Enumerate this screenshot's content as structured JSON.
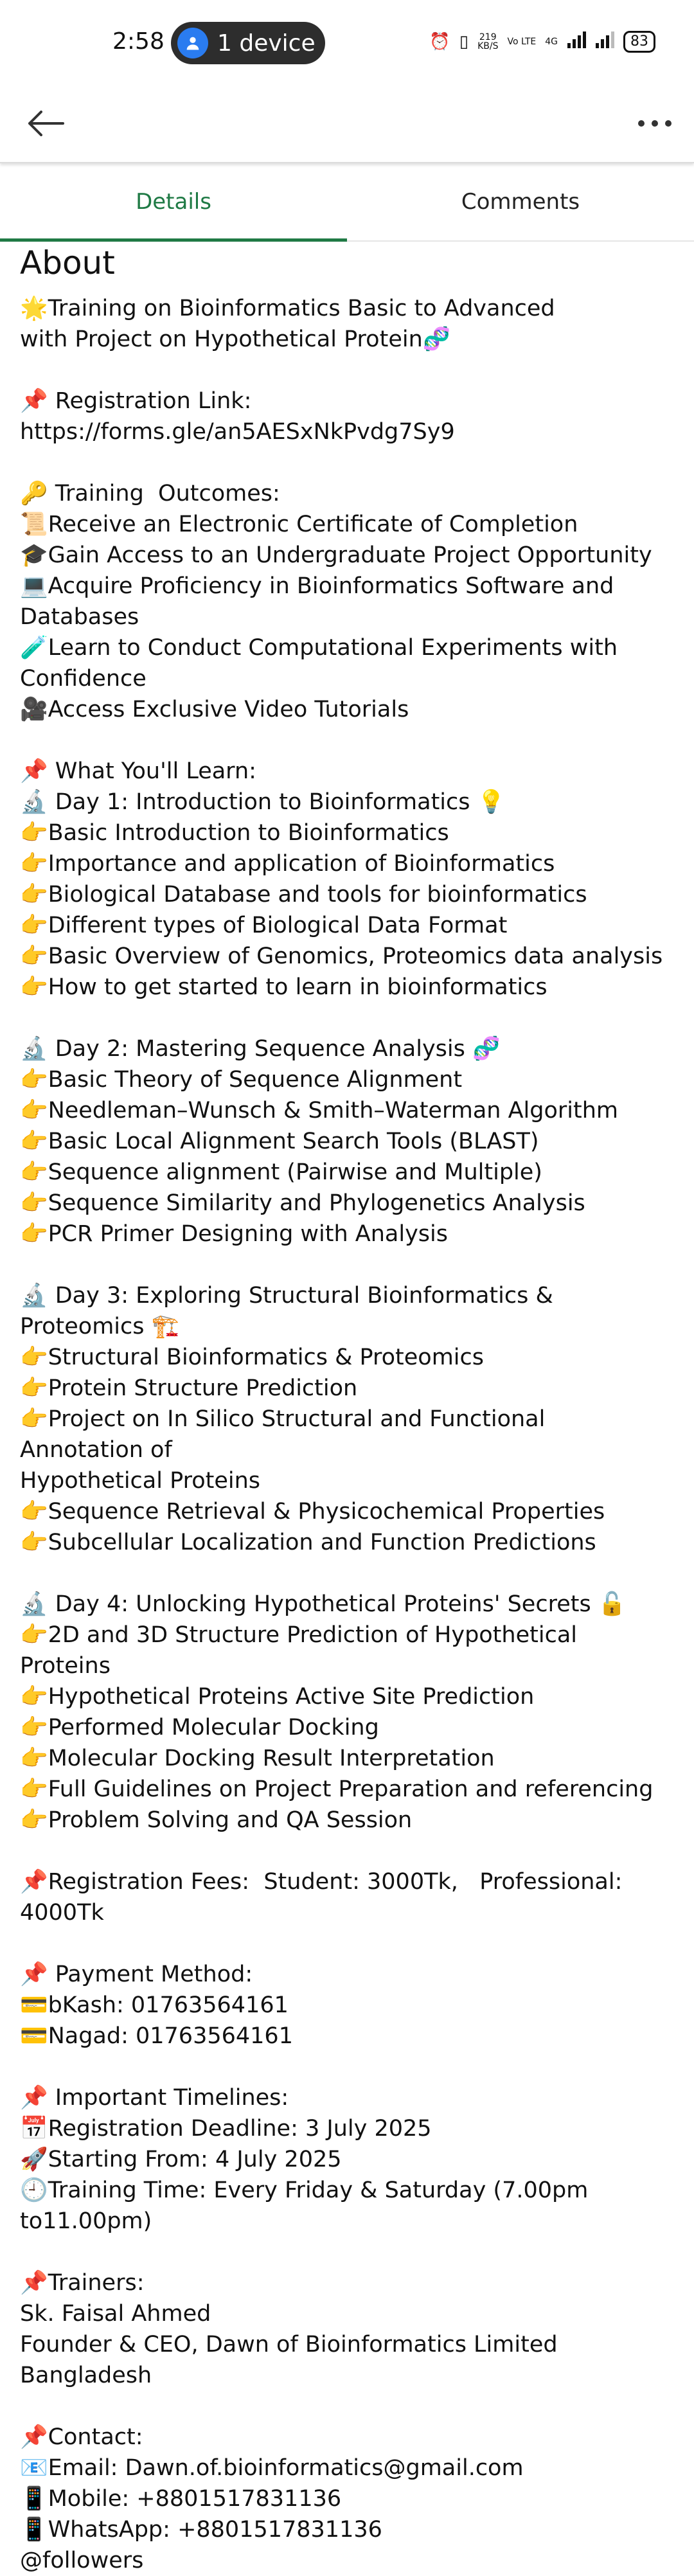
{
  "status_bar": {
    "time": "2:58",
    "device_pill": "1 device",
    "net_speed_top": "219",
    "net_speed_unit": "KB/S",
    "volte": "Vo LTE",
    "signal_label": "4G",
    "battery": "83"
  },
  "tabs": [
    {
      "label": "Details"
    },
    {
      "label": "Comments"
    }
  ],
  "about_title": "About",
  "lines": [
    "🌟Training on Bioinformatics Basic to Advanced",
    "with Project on Hypothetical Protein🧬",
    "",
    "📌 Registration Link: https://forms.gle/an5AESxNkPvdg7Sy9",
    "",
    "🔑 Training  Outcomes:",
    "📜Receive an Electronic Certificate of Completion",
    "🎓Gain Access to an Undergraduate Project Opportunity",
    "💻Acquire Proficiency in Bioinformatics Software and",
    "Databases",
    "🧪Learn to Conduct Computational Experiments with",
    "Confidence",
    "🎥Access Exclusive Video Tutorials",
    "",
    "📌 What You'll Learn:",
    "🔬 Day 1: Introduction to Bioinformatics 💡",
    "👉Basic Introduction to Bioinformatics",
    "👉Importance and application of Bioinformatics",
    "👉Biological Database and tools for bioinformatics",
    "👉Different types of Biological Data Format",
    "👉Basic Overview of Genomics, Proteomics data analysis",
    "👉How to get started to learn in bioinformatics",
    "",
    "🔬 Day 2: Mastering Sequence Analysis 🧬",
    "👉Basic Theory of Sequence Alignment",
    "👉Needleman–Wunsch & Smith–Waterman Algorithm",
    "👉Basic Local Alignment Search Tools (BLAST)",
    "👉Sequence alignment (Pairwise and Multiple)",
    "👉Sequence Similarity and Phylogenetics Analysis",
    "👉PCR Primer Designing with Analysis",
    "",
    "🔬 Day 3: Exploring Structural Bioinformatics & Proteomics 🏗️",
    "👉Structural Bioinformatics & Proteomics",
    "👉Protein Structure Prediction",
    "👉Project on In Silico Structural and Functional Annotation of",
    "Hypothetical Proteins",
    "👉Sequence Retrieval & Physicochemical Properties",
    "👉Subcellular Localization and Function Predictions",
    "",
    "🔬 Day 4: Unlocking Hypothetical Proteins' Secrets 🔓",
    "👉2D and 3D Structure Prediction of Hypothetical Proteins",
    "👉Hypothetical Proteins Active Site Prediction",
    "👉Performed Molecular Docking",
    "👉Molecular Docking Result Interpretation",
    "👉Full Guidelines on Project Preparation and referencing",
    "👉Problem Solving and QA Session",
    "",
    "📌Registration Fees:  Student: 3000Tk,   Professional:",
    "4000Tk",
    "",
    "📌 Payment Method:",
    "💳bKash: 01763564161",
    "💳Nagad: 01763564161",
    "",
    "📌 Important Timelines:",
    "📅Registration Deadline: 3 July 2025",
    "🚀Starting From: 4 July 2025",
    "🕘Training Time: Every Friday & Saturday (7.00pm to11.00pm)",
    "",
    "📌Trainers:",
    "Sk. Faisal Ahmed",
    "Founder & CEO, Dawn of Bioinformatics Limited Bangladesh",
    "",
    "📌Contact:",
    "📧Email: Dawn.of.bioinformatics@gmail.com",
    "📱Mobile: +8801517831136",
    "📱WhatsApp: +8801517831136",
    "@followers"
  ]
}
